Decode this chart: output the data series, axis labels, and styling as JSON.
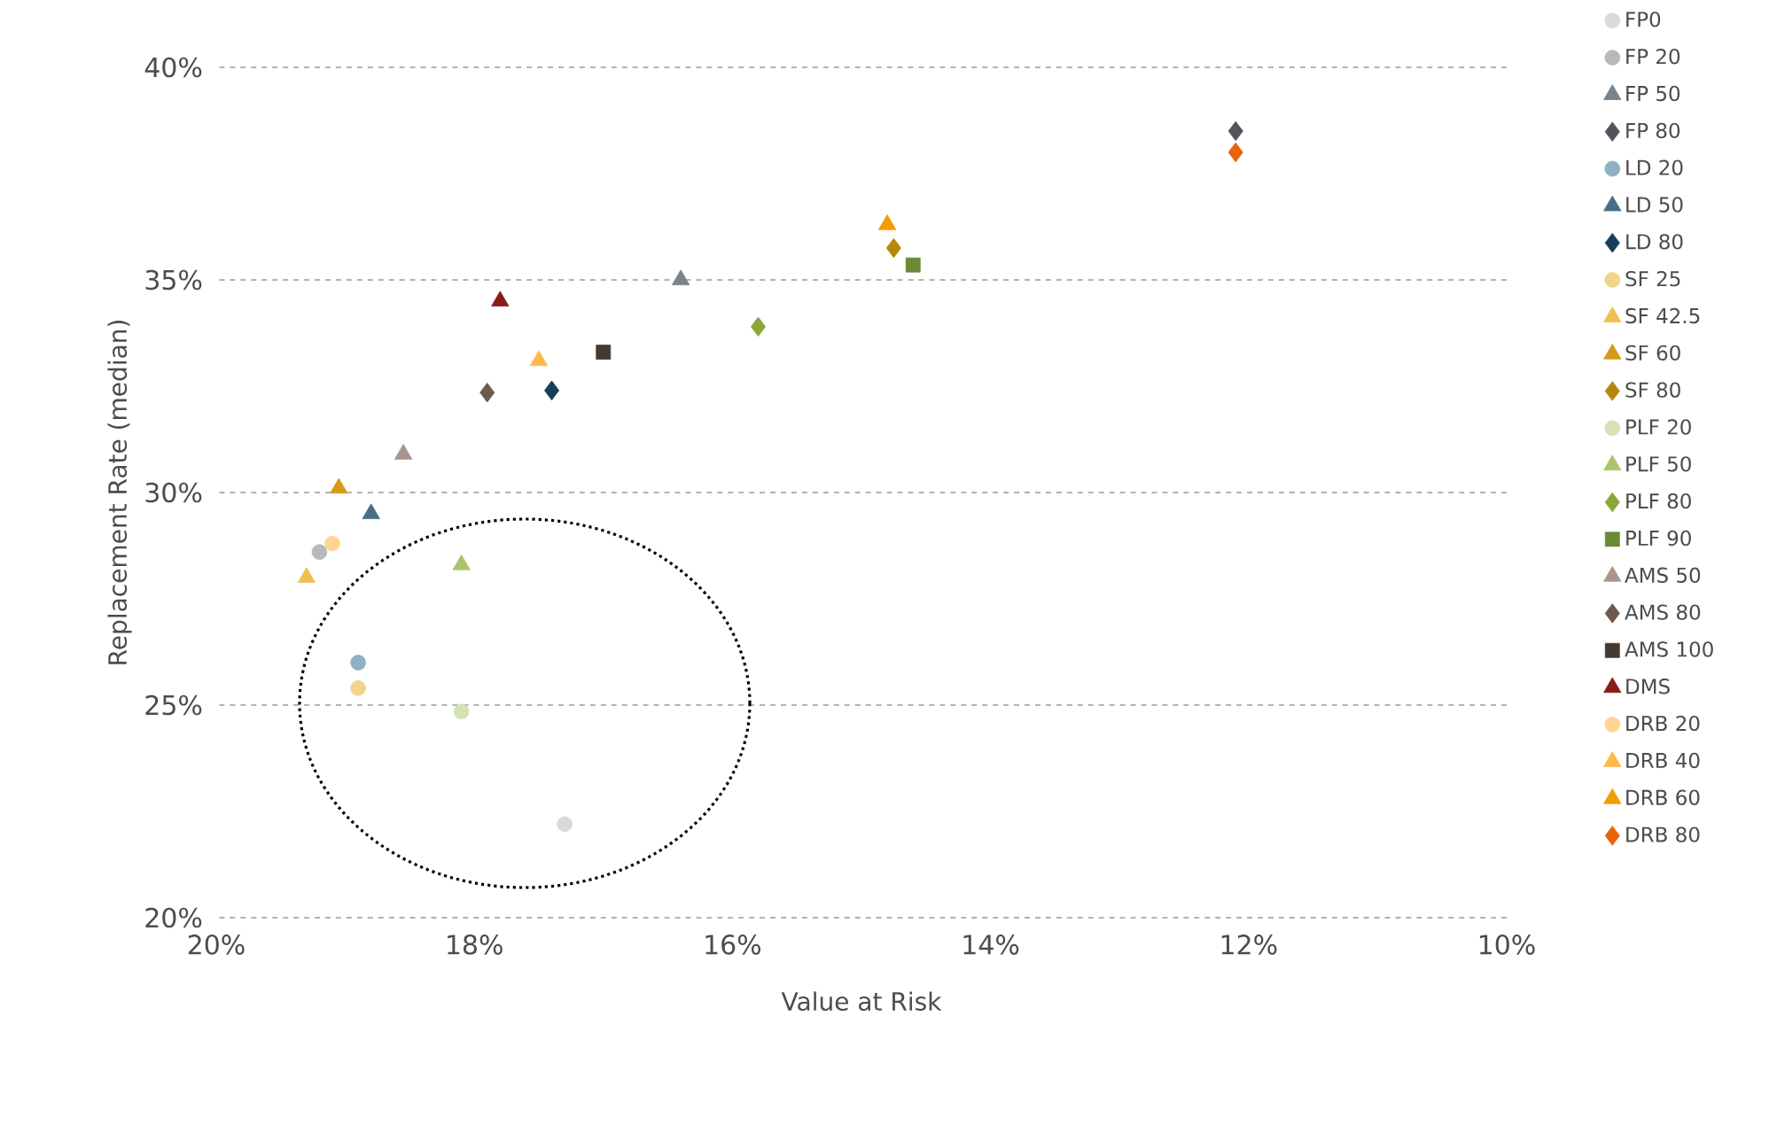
{
  "chart_data": {
    "type": "scatter",
    "xlabel": "Value at Risk",
    "ylabel": "Replacement Rate (median)",
    "xlim": [
      20,
      10
    ],
    "ylim": [
      20,
      40
    ],
    "xticks": [
      {
        "value": 20,
        "label": "20%"
      },
      {
        "value": 18,
        "label": "18%"
      },
      {
        "value": 16,
        "label": "16%"
      },
      {
        "value": 14,
        "label": "14%"
      },
      {
        "value": 12,
        "label": "12%"
      },
      {
        "value": 10,
        "label": "10%"
      }
    ],
    "yticks": [
      {
        "value": 20,
        "label": "20%"
      },
      {
        "value": 25,
        "label": "25%"
      },
      {
        "value": 30,
        "label": "30%"
      },
      {
        "value": 35,
        "label": "35%"
      },
      {
        "value": 40,
        "label": "40%"
      }
    ],
    "grid": "y",
    "legend": "right",
    "series": [
      {
        "name": "FP0",
        "color": "#d9d9db",
        "marker": "circle",
        "x": [
          17.3
        ],
        "values": [
          22.2
        ]
      },
      {
        "name": "FP 20",
        "color": "#b6babd",
        "marker": "circle",
        "x": [
          19.2
        ],
        "values": [
          28.6
        ]
      },
      {
        "name": "FP 50",
        "color": "#78838c",
        "marker": "triangle",
        "x": [
          16.4
        ],
        "values": [
          35.0
        ]
      },
      {
        "name": "FP 80",
        "color": "#4f555b",
        "marker": "diamond",
        "x": [
          12.1
        ],
        "values": [
          38.5
        ]
      },
      {
        "name": "LD 20",
        "color": "#8fb0c4",
        "marker": "circle",
        "x": [
          18.9
        ],
        "values": [
          26.0
        ]
      },
      {
        "name": "LD 50",
        "color": "#466e87",
        "marker": "triangle",
        "x": [
          18.8
        ],
        "values": [
          29.5
        ]
      },
      {
        "name": "LD 80",
        "color": "#173f5a",
        "marker": "diamond",
        "x": [
          17.4
        ],
        "values": [
          32.4
        ]
      },
      {
        "name": "SF 25",
        "color": "#f0d58a",
        "marker": "circle",
        "x": [
          18.9
        ],
        "values": [
          25.4
        ]
      },
      {
        "name": "SF 42.5",
        "color": "#efc050",
        "marker": "triangle",
        "x": [
          19.3
        ],
        "values": [
          28.0
        ]
      },
      {
        "name": "SF 60",
        "color": "#d49a16",
        "marker": "triangle",
        "x": [
          19.05
        ],
        "values": [
          30.1
        ]
      },
      {
        "name": "SF 80",
        "color": "#b8860b",
        "marker": "diamond",
        "x": [
          14.75
        ],
        "values": [
          35.75
        ]
      },
      {
        "name": "PLF 20",
        "color": "#d4e2b4",
        "marker": "circle",
        "x": [
          18.1
        ],
        "values": [
          24.85
        ]
      },
      {
        "name": "PLF 50",
        "color": "#abc46c",
        "marker": "triangle",
        "x": [
          18.1
        ],
        "values": [
          28.3
        ]
      },
      {
        "name": "PLF 80",
        "color": "#8aa63a",
        "marker": "diamond",
        "x": [
          15.8
        ],
        "values": [
          33.9
        ]
      },
      {
        "name": "PLF 90",
        "color": "#6a8a35",
        "marker": "square",
        "x": [
          14.6
        ],
        "values": [
          35.35
        ]
      },
      {
        "name": "AMS 50",
        "color": "#a8968c",
        "marker": "triangle",
        "x": [
          18.55
        ],
        "values": [
          30.9
        ]
      },
      {
        "name": "AMS 80",
        "color": "#6e5a4c",
        "marker": "diamond",
        "x": [
          17.9
        ],
        "values": [
          32.35
        ]
      },
      {
        "name": "AMS 100",
        "color": "#463a30",
        "marker": "square",
        "x": [
          17.0
        ],
        "values": [
          33.3
        ]
      },
      {
        "name": "DMS",
        "color": "#8b1a1a",
        "marker": "triangle",
        "x": [
          17.8
        ],
        "values": [
          34.5
        ]
      },
      {
        "name": "DRB 20",
        "color": "#ffd592",
        "marker": "circle",
        "x": [
          19.1
        ],
        "values": [
          28.8
        ]
      },
      {
        "name": "DRB 40",
        "color": "#ffb94a",
        "marker": "triangle",
        "x": [
          17.5
        ],
        "values": [
          33.1
        ]
      },
      {
        "name": "DRB 60",
        "color": "#f39c00",
        "marker": "triangle",
        "x": [
          14.8
        ],
        "values": [
          36.3
        ]
      },
      {
        "name": "DRB 80",
        "color": "#e8630a",
        "marker": "diamond",
        "x": [
          12.1
        ],
        "values": [
          38.0
        ]
      }
    ]
  }
}
